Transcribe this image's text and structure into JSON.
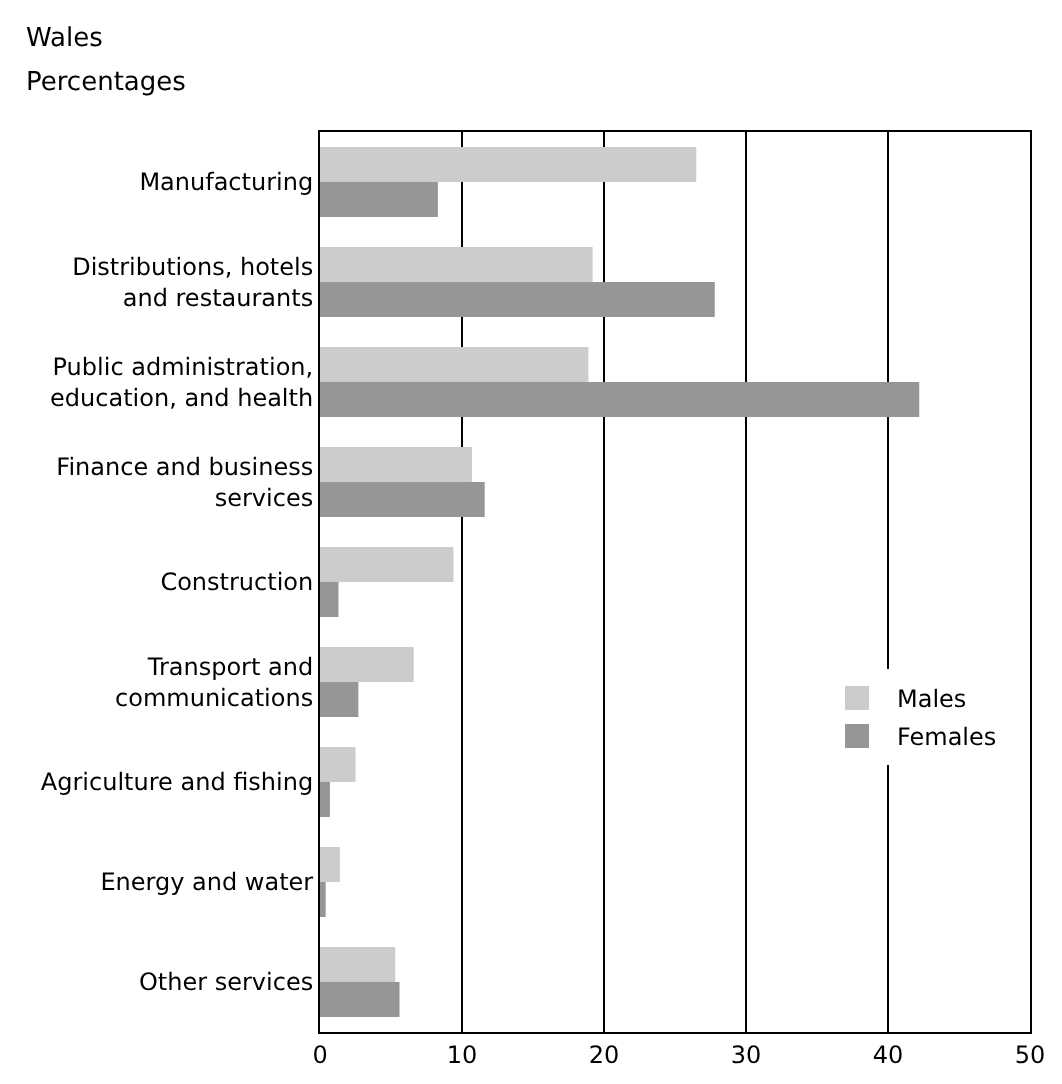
{
  "chart_data": {
    "type": "bar",
    "orientation": "horizontal",
    "title": "Wales",
    "subtitle": "Percentages",
    "categories": [
      "Manufacturing",
      "Distributions, hotels\nand restaurants",
      "Public administration,\neducation, and health",
      "Finance and business\nservices",
      "Construction",
      "Transport and\ncommunications",
      "Agriculture and fishing",
      "Energy and water",
      "Other services"
    ],
    "series": [
      {
        "name": "Males",
        "color": "#cccccc",
        "values": [
          26.5,
          19.2,
          18.9,
          10.7,
          9.4,
          6.6,
          2.5,
          1.4,
          5.3
        ]
      },
      {
        "name": "Females",
        "color": "#969696",
        "values": [
          8.3,
          27.8,
          42.2,
          11.6,
          1.3,
          2.7,
          0.7,
          0.4,
          5.6
        ]
      }
    ],
    "xlim": [
      0,
      50
    ],
    "xticks": [
      0,
      10,
      20,
      30,
      40,
      50
    ],
    "grid": "x",
    "legend": "right"
  }
}
